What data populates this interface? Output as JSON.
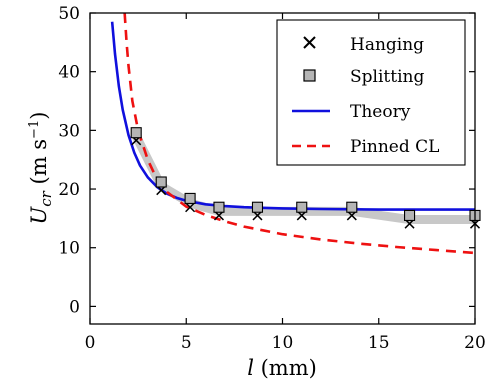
{
  "chart_data": {
    "type": "line",
    "xlabel": {
      "symbol": "l",
      "unit": " (mm)"
    },
    "ylabel": {
      "symbol": "U",
      "subscript": "cr",
      "unit_prefix": " (m s",
      "unit_exp": "−1",
      "unit_suffix": ")"
    },
    "xlim": [
      0,
      20
    ],
    "ylim": [
      -3,
      50
    ],
    "xticks": [
      0,
      5,
      10,
      15,
      20
    ],
    "yticks": [
      0,
      10,
      20,
      30,
      40,
      50
    ],
    "grid": false,
    "legend_position": "top-right",
    "series": [
      {
        "name": "Hanging",
        "kind": "scatter",
        "marker": "x",
        "color": "#000000",
        "x": [
          2.4,
          3.7,
          5.2,
          6.7,
          8.7,
          11.0,
          13.6,
          16.6,
          20.0
        ],
        "y": [
          28.3,
          19.8,
          16.9,
          15.5,
          15.5,
          15.5,
          15.5,
          14.1,
          14.1
        ]
      },
      {
        "name": "Splitting",
        "kind": "scatter",
        "marker": "square",
        "color": "#b5b5b5",
        "x": [
          2.4,
          3.7,
          5.2,
          6.7,
          8.7,
          11.0,
          13.6,
          16.6,
          20.0
        ],
        "y": [
          29.6,
          21.2,
          18.4,
          16.9,
          16.9,
          16.9,
          16.9,
          15.5,
          15.5
        ]
      },
      {
        "name": "",
        "kind": "band",
        "color": "#c8c8c8",
        "x": [
          2.4,
          3.7,
          5.2,
          6.7,
          8.7,
          11.0,
          13.6,
          16.6,
          20.0
        ],
        "y": [
          29.0,
          20.5,
          17.6,
          16.2,
          16.2,
          16.2,
          16.2,
          14.8,
          14.8
        ]
      },
      {
        "name": "Theory",
        "kind": "line",
        "color": "#1010dd",
        "x": [
          1.15,
          1.3,
          1.5,
          1.7,
          2.0,
          2.3,
          2.6,
          3.0,
          3.5,
          4.0,
          4.5,
          5.0,
          6.0,
          7.0,
          8.0,
          10.0,
          12.0,
          15.0,
          18.0,
          20.0
        ],
        "y": [
          48.5,
          43.0,
          37.5,
          33.5,
          29.2,
          26.2,
          24.0,
          22.0,
          20.3,
          19.2,
          18.5,
          18.0,
          17.4,
          17.1,
          16.9,
          16.7,
          16.6,
          16.5,
          16.5,
          16.5
        ]
      },
      {
        "name": "Pinned CL",
        "kind": "line",
        "dashed": true,
        "color": "#ee1111",
        "x": [
          1.8,
          1.9,
          2.0,
          2.2,
          2.5,
          3.0,
          3.5,
          4.0,
          5.0,
          6.0,
          7.0,
          8.0,
          10.0,
          12.0,
          14.0,
          16.0,
          18.0,
          20.0
        ],
        "y": [
          50.0,
          45.0,
          41.0,
          35.0,
          30.0,
          25.0,
          21.5,
          19.5,
          17.0,
          15.6,
          14.5,
          13.6,
          12.3,
          11.4,
          10.7,
          10.1,
          9.6,
          9.1
        ]
      }
    ]
  }
}
